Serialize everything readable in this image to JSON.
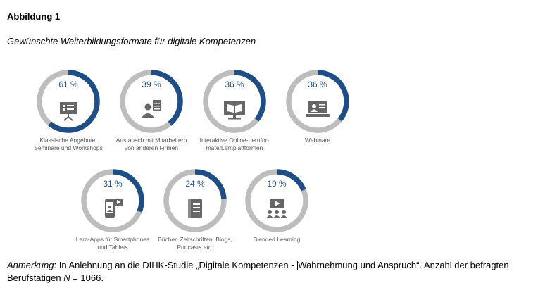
{
  "figure": {
    "label": "Abbildung 1",
    "caption": "Gewünschte Weiterbildungsformate für digitale Kompetenzen"
  },
  "colors": {
    "ring_fill": "#1f4e86",
    "ring_track": "#bdbdbd",
    "icon": "#666666"
  },
  "chart_data": {
    "type": "pie",
    "items": [
      {
        "value": 61,
        "pct_label": "61 %",
        "label": "Klassische Angebote,\nSeminare und Workshops",
        "icon": "presentation-board-icon"
      },
      {
        "value": 39,
        "pct_label": "39 %",
        "label": "Austausch mit Mitarbeitern\nvon anderen Firmen",
        "icon": "person-exchange-icon"
      },
      {
        "value": 36,
        "pct_label": "36 %",
        "label": "Interaktive Online-Lernfor-\nmate/Lernplattformen",
        "icon": "book-monitor-icon"
      },
      {
        "value": 36,
        "pct_label": "36 %",
        "label": "Webinare",
        "icon": "webinar-laptop-icon"
      },
      {
        "value": 31,
        "pct_label": "31 %",
        "label": "Lern-Apps für Smartphones\nund Tablets",
        "icon": "smartphone-app-icon"
      },
      {
        "value": 24,
        "pct_label": "24 %",
        "label": "Bücher, Zeitschriften, Blogs,\nPodcasts etc.",
        "icon": "book-icon"
      },
      {
        "value": 19,
        "pct_label": "19 %",
        "label": "Blended Learning",
        "icon": "video-group-icon"
      }
    ]
  },
  "note": {
    "prefix": "Anmerkung",
    "text_before_cursor": ": In Anlehnung an die DIHK-Studie „Digitale Kompetenzen - ",
    "text_after_cursor": "Wahrnehmung und Anspruch“. Anzahl der befragten Berufstätigen ",
    "n_symbol": "N",
    "n_value": " = 1066."
  }
}
